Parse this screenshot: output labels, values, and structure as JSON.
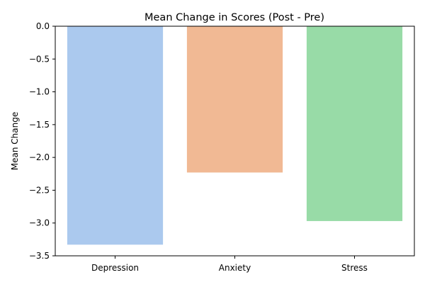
{
  "chart_data": {
    "type": "bar",
    "title": "Mean Change in Scores (Post - Pre)",
    "xlabel": "",
    "ylabel": "Mean Change",
    "ylim": [
      -3.5,
      0.0
    ],
    "yticks": [
      0.0,
      -0.5,
      -1.0,
      -1.5,
      -2.0,
      -2.5,
      -3.0,
      -3.5
    ],
    "ytick_labels": [
      "0.0",
      "−0.5",
      "−1.0",
      "−1.5",
      "−2.0",
      "−2.5",
      "−3.0",
      "−3.5"
    ],
    "categories": [
      "Depression",
      "Anxiety",
      "Stress"
    ],
    "values": [
      -3.33,
      -2.23,
      -2.97
    ],
    "colors": [
      "#abc9ee",
      "#f1b994",
      "#98dba7"
    ],
    "grid": false,
    "legend": "none"
  }
}
